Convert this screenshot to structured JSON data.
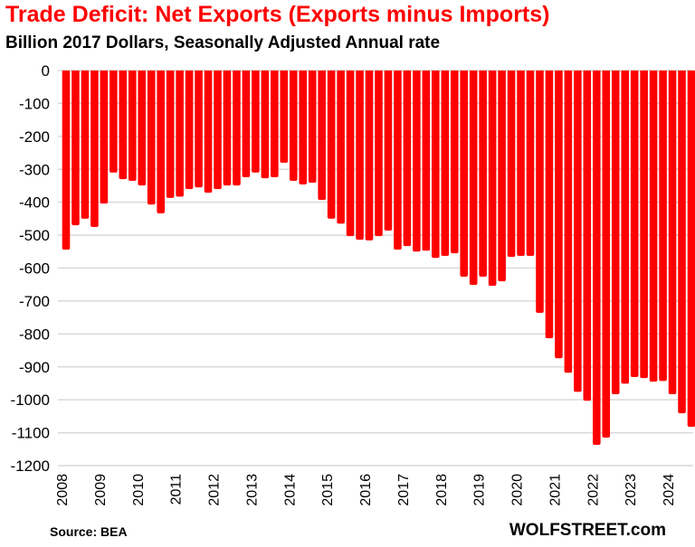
{
  "chart_data": {
    "type": "bar",
    "title": "Trade Deficit: Net Exports (Exports minus Imports)",
    "subtitle": "Billion 2017 Dollars, Seasonally Adjusted Annual rate",
    "xlabel": "",
    "ylabel": "",
    "ylim": [
      -1200,
      0
    ],
    "yticks": [
      "0",
      "-100",
      "-200",
      "-300",
      "-400",
      "-500",
      "-600",
      "-700",
      "-800",
      "-900",
      "-1000",
      "-1100",
      "-1200"
    ],
    "xtick_labels": [
      "2008",
      "2009",
      "2010",
      "2011",
      "2012",
      "2013",
      "2014",
      "2015",
      "2016",
      "2017",
      "2018",
      "2019",
      "2020",
      "2021",
      "2022",
      "2023",
      "2024"
    ],
    "grid": true,
    "bar_color": "#ff0000",
    "frequency": "quarterly",
    "categories": [
      "2008Q1",
      "2008Q2",
      "2008Q3",
      "2008Q4",
      "2009Q1",
      "2009Q2",
      "2009Q3",
      "2009Q4",
      "2010Q1",
      "2010Q2",
      "2010Q3",
      "2010Q4",
      "2011Q1",
      "2011Q2",
      "2011Q3",
      "2011Q4",
      "2012Q1",
      "2012Q2",
      "2012Q3",
      "2012Q4",
      "2013Q1",
      "2013Q2",
      "2013Q3",
      "2013Q4",
      "2014Q1",
      "2014Q2",
      "2014Q3",
      "2014Q4",
      "2015Q1",
      "2015Q2",
      "2015Q3",
      "2015Q4",
      "2016Q1",
      "2016Q2",
      "2016Q3",
      "2016Q4",
      "2017Q1",
      "2017Q2",
      "2017Q3",
      "2017Q4",
      "2018Q1",
      "2018Q2",
      "2018Q3",
      "2018Q4",
      "2019Q1",
      "2019Q2",
      "2019Q3",
      "2019Q4",
      "2020Q1",
      "2020Q2",
      "2020Q3",
      "2020Q4",
      "2021Q1",
      "2021Q2",
      "2021Q3",
      "2021Q4",
      "2022Q1",
      "2022Q2",
      "2022Q3",
      "2022Q4",
      "2023Q1",
      "2023Q2",
      "2023Q3",
      "2023Q4",
      "2024Q1",
      "2024Q2",
      "2024Q3"
    ],
    "values": [
      -544,
      -470,
      -450,
      -475,
      -404,
      -310,
      -330,
      -335,
      -349,
      -407,
      -434,
      -387,
      -383,
      -360,
      -355,
      -371,
      -360,
      -349,
      -349,
      -324,
      -310,
      -327,
      -324,
      -280,
      -335,
      -346,
      -341,
      -393,
      -450,
      -465,
      -503,
      -514,
      -516,
      -503,
      -486,
      -544,
      -533,
      -550,
      -547,
      -569,
      -563,
      -555,
      -626,
      -651,
      -626,
      -654,
      -640,
      -566,
      -563,
      -563,
      -736,
      -813,
      -874,
      -918,
      -976,
      -1003,
      -1137,
      -1115,
      -983,
      -951,
      -931,
      -934,
      -945,
      -943,
      -983,
      -1041,
      -1082
    ]
  },
  "footer": {
    "source": "Source: BEA",
    "brand": "WOLFSTREET.com"
  }
}
